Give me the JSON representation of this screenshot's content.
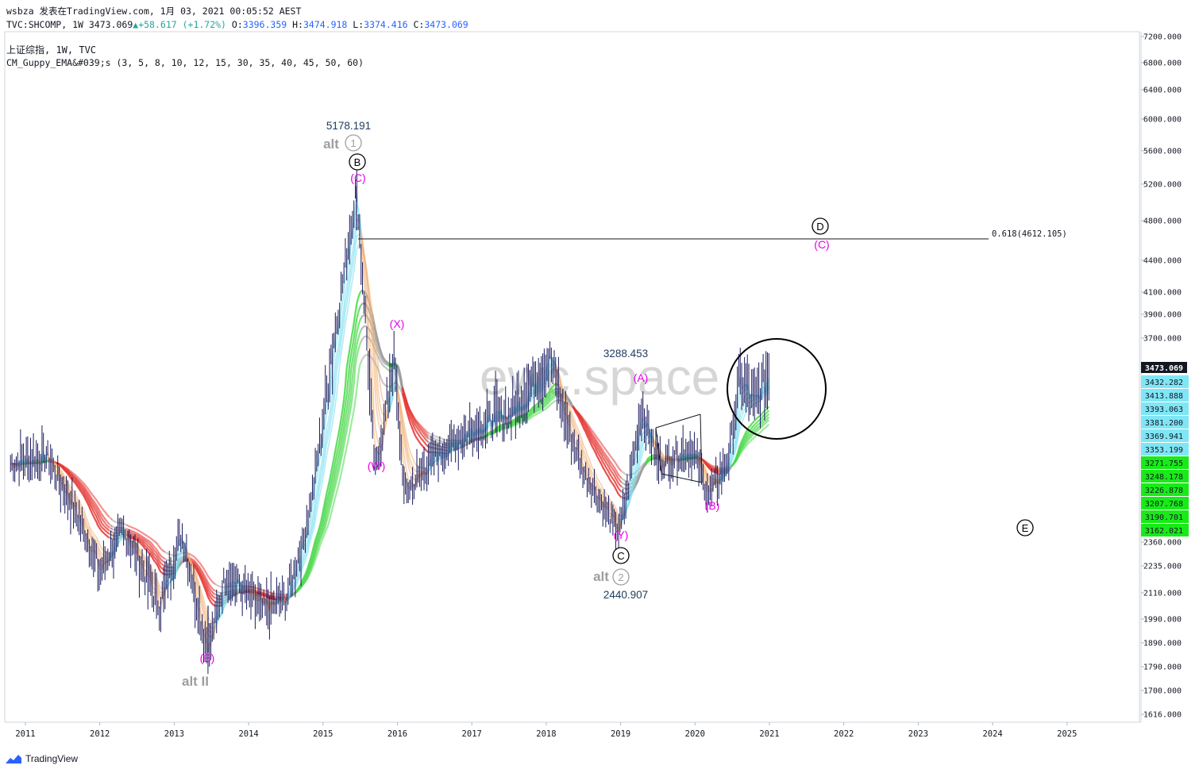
{
  "header": {
    "line1": "wsbza 发表在TradingView.com, 1月 03, 2021 00:05:52 AEST",
    "symbol": "TVC:SHCOMP, 1W",
    "last": "3473.069",
    "change": "+58.617 (+1.72%)",
    "o_label": "O:",
    "o": "3396.359",
    "h_label": "H:",
    "h": "3474.918",
    "l_label": "L:",
    "l": "3374.416",
    "c_label": "C:",
    "c": "3473.069",
    "title": "上证综指, 1W, TVC",
    "indicator": "CM_Guppy_EMA&#039;s (3, 5, 8, 10, 12, 15, 30, 35, 40, 45, 50, 60)"
  },
  "footer": {
    "brand": "TradingView"
  },
  "watermark": "ewc.space",
  "colors": {
    "candle": "#1a1a5e",
    "ema_red": "#e53935",
    "ema_salmon": "#e57373",
    "ema_orange": "#f0b27a",
    "ema_green": "#4cd94c",
    "ema_cyan": "#7fe0f0",
    "ema_gray": "#9e9e9e",
    "magenta": "#e600e6",
    "navy": "#1e3a5f",
    "alt_gray": "#9e9e9e"
  },
  "chart_data": {
    "type": "line",
    "scale": "log",
    "x_ticks": [
      "2011",
      "2012",
      "2013",
      "2014",
      "2015",
      "2016",
      "2017",
      "2018",
      "2019",
      "2020",
      "2021",
      "2022",
      "2023",
      "2024",
      "2025"
    ],
    "y_ticks": [
      1616,
      1700,
      1790,
      1890,
      1990,
      2110,
      2235,
      2360,
      3700,
      3900,
      4100,
      4400,
      4800,
      5200,
      5600,
      6000,
      6400,
      6800,
      7200
    ],
    "y_tick_labels": [
      "1616.000",
      "1700.000",
      "1790.000",
      "1890.000",
      "1990.000",
      "2110.000",
      "2235.000",
      "2360.000",
      "3700.000",
      "3900.000",
      "4100.000",
      "4400.000",
      "4800.000",
      "5200.000",
      "5600.000",
      "6000.000",
      "6400.000",
      "6800.000",
      "7200.000"
    ],
    "last_price_label": "3473.069",
    "ema_labels": [
      {
        "text": "3432.282",
        "kind": "cyan"
      },
      {
        "text": "3413.888",
        "kind": "cyan"
      },
      {
        "text": "3393.063",
        "kind": "cyan"
      },
      {
        "text": "3381.200",
        "kind": "cyan"
      },
      {
        "text": "3369.941",
        "kind": "cyan"
      },
      {
        "text": "3353.199",
        "kind": "cyan"
      },
      {
        "text": "3271.755",
        "kind": "green"
      },
      {
        "text": "3248.178",
        "kind": "green"
      },
      {
        "text": "3226.878",
        "kind": "green"
      },
      {
        "text": "3207.768",
        "kind": "green"
      },
      {
        "text": "3190.701",
        "kind": "green"
      },
      {
        "text": "3162.021",
        "kind": "green"
      }
    ],
    "fib_line": {
      "label": "0.618(4612.105)",
      "value": 4612.105
    },
    "price_path": [
      {
        "x": 2010.8,
        "y": 2900
      },
      {
        "x": 2011.3,
        "y": 2950
      },
      {
        "x": 2011.7,
        "y": 2550
      },
      {
        "x": 2012.0,
        "y": 2200
      },
      {
        "x": 2012.3,
        "y": 2450
      },
      {
        "x": 2012.8,
        "y": 2050
      },
      {
        "x": 2013.1,
        "y": 2420
      },
      {
        "x": 2013.45,
        "y": 1849
      },
      {
        "x": 2013.7,
        "y": 2200
      },
      {
        "x": 2014.2,
        "y": 2030
      },
      {
        "x": 2014.5,
        "y": 2080
      },
      {
        "x": 2014.75,
        "y": 2400
      },
      {
        "x": 2015.0,
        "y": 3200
      },
      {
        "x": 2015.2,
        "y": 3900
      },
      {
        "x": 2015.45,
        "y": 5178
      },
      {
        "x": 2015.6,
        "y": 3600
      },
      {
        "x": 2015.7,
        "y": 2850
      },
      {
        "x": 2015.95,
        "y": 3600
      },
      {
        "x": 2016.1,
        "y": 2700
      },
      {
        "x": 2016.5,
        "y": 2950
      },
      {
        "x": 2017.0,
        "y": 3150
      },
      {
        "x": 2017.5,
        "y": 3250
      },
      {
        "x": 2018.05,
        "y": 3560
      },
      {
        "x": 2018.5,
        "y": 2850
      },
      {
        "x": 2018.98,
        "y": 2441
      },
      {
        "x": 2019.28,
        "y": 3288
      },
      {
        "x": 2019.5,
        "y": 2900
      },
      {
        "x": 2019.95,
        "y": 3000
      },
      {
        "x": 2020.2,
        "y": 2680
      },
      {
        "x": 2020.45,
        "y": 2950
      },
      {
        "x": 2020.6,
        "y": 3450
      },
      {
        "x": 2020.8,
        "y": 3300
      },
      {
        "x": 2021.0,
        "y": 3473
      }
    ],
    "price_labels": [
      {
        "text": "5178.191",
        "value": 5178.191
      },
      {
        "text": "3288.453",
        "value": 3288.453
      },
      {
        "text": "2440.907",
        "value": 2440.907
      }
    ],
    "wave_labels": [
      {
        "text": "(C)",
        "color": "magenta"
      },
      {
        "text": "(X)",
        "color": "magenta"
      },
      {
        "text": "(W)",
        "color": "magenta"
      },
      {
        "text": "(A)",
        "color": "magenta"
      },
      {
        "text": "(Y)",
        "color": "magenta"
      },
      {
        "text": "(B)",
        "color": "magenta"
      },
      {
        "text": "(B)",
        "color": "magenta"
      },
      {
        "text": "(C)",
        "color": "magenta"
      }
    ],
    "circled_labels": [
      "B",
      "C",
      "D",
      "E"
    ],
    "alt_labels": [
      "alt",
      "alt",
      "alt II"
    ],
    "alt_circled": [
      "1",
      "2"
    ]
  }
}
